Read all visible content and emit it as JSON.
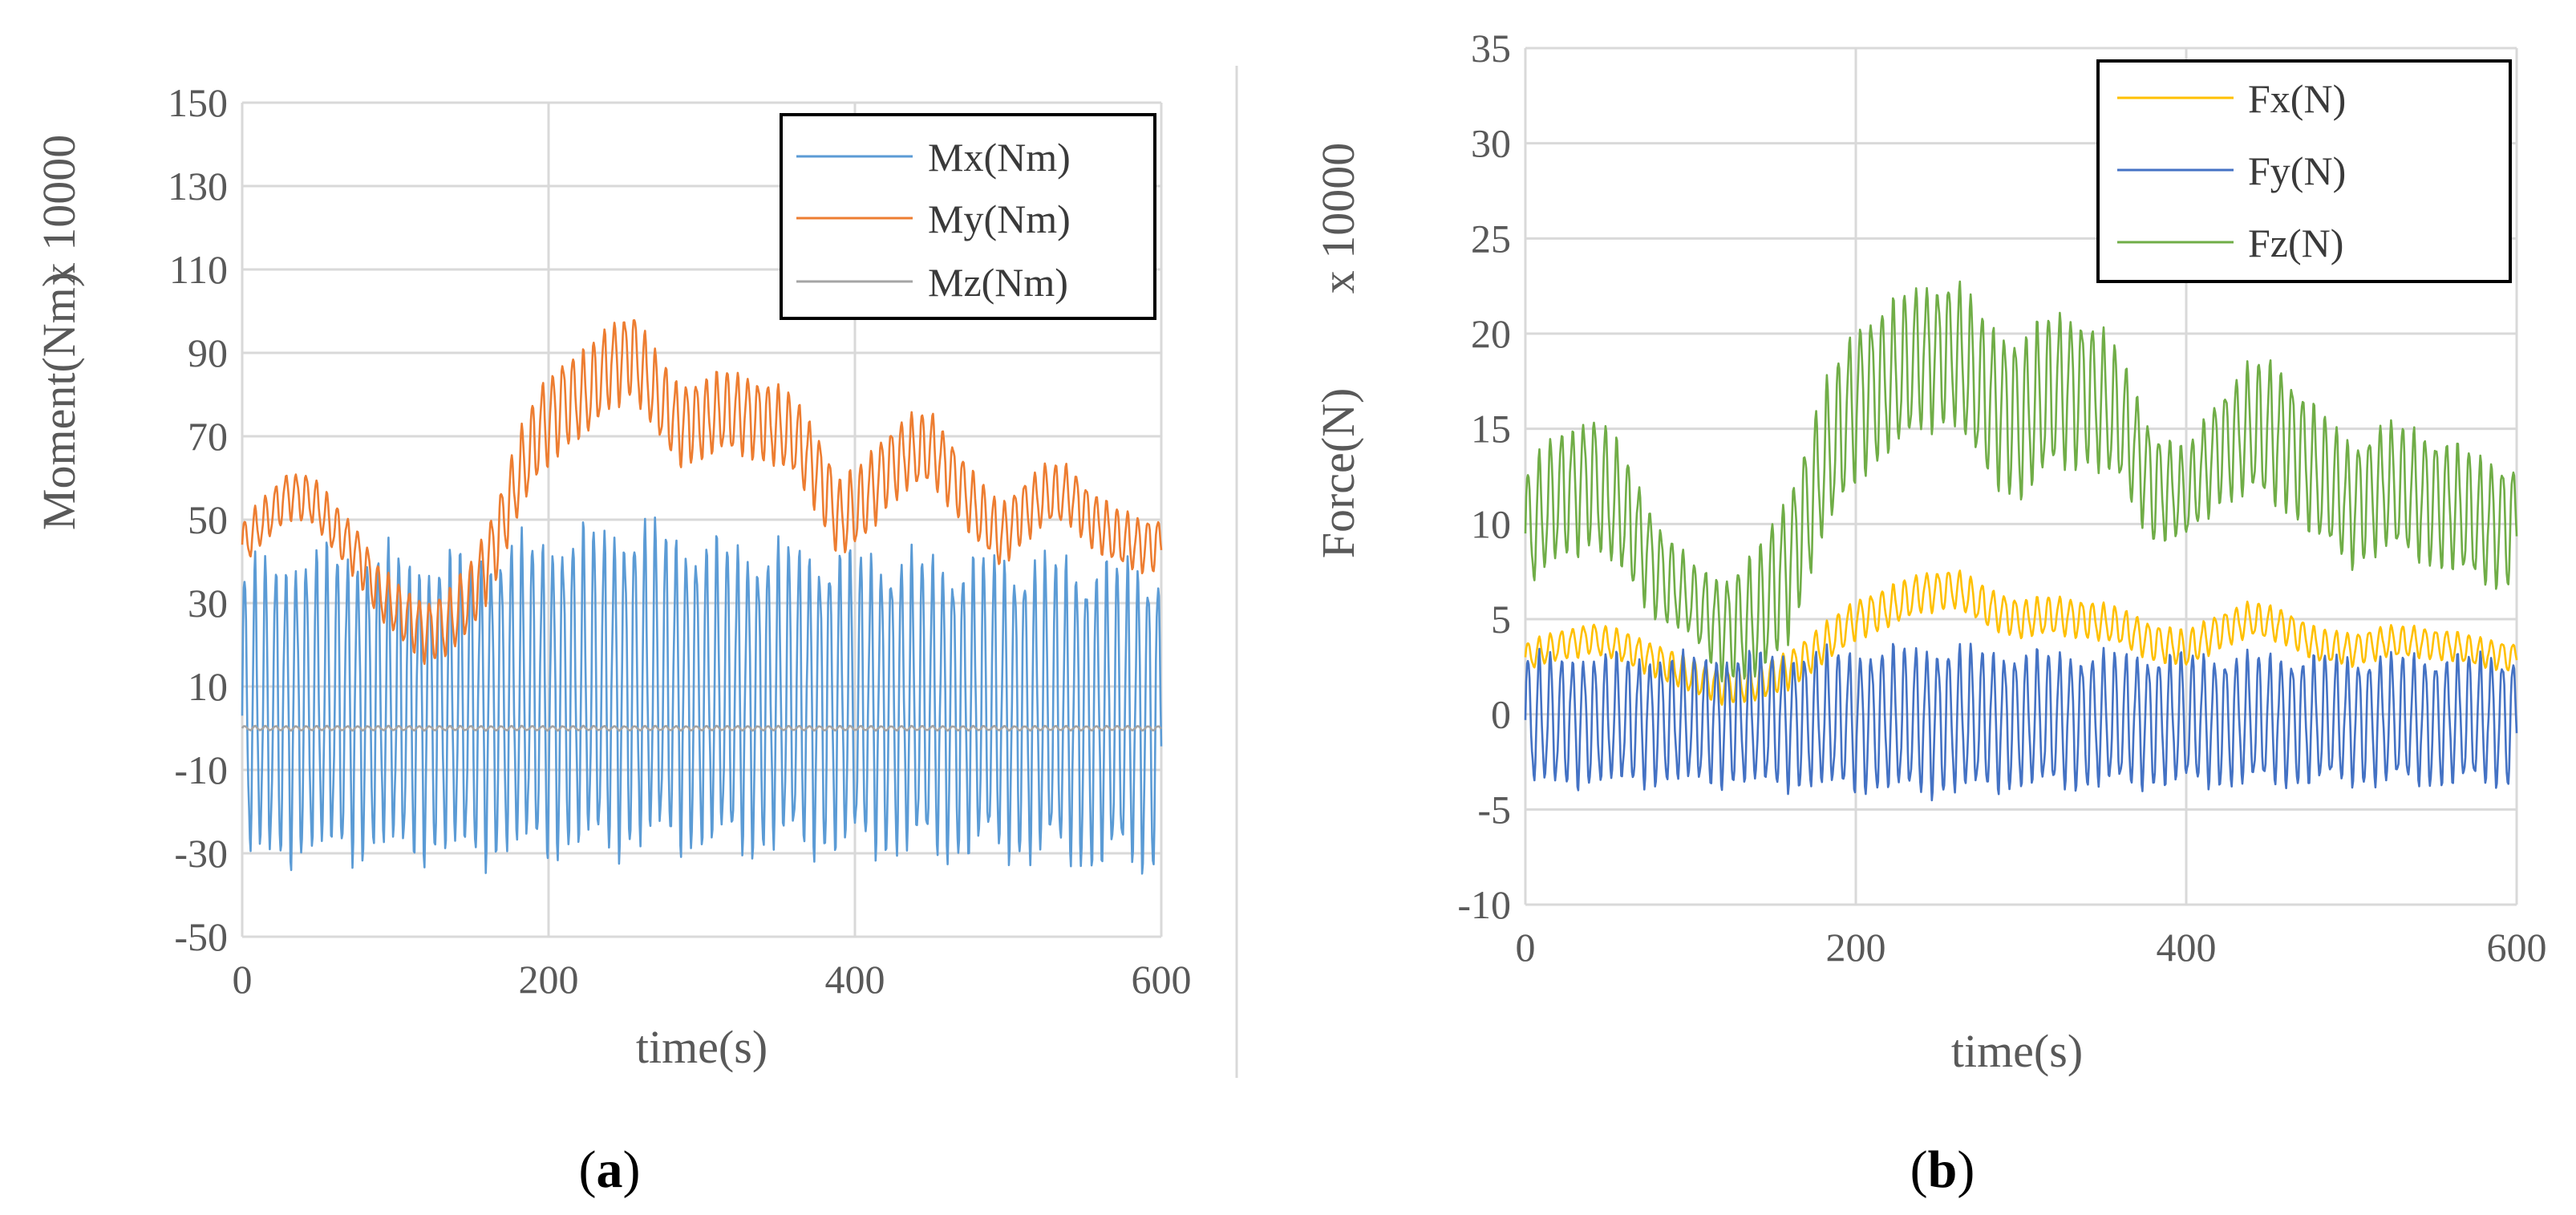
{
  "colors": {
    "mx": "#5B9BD5",
    "my": "#ED7D31",
    "mz": "#A5A5A5",
    "fx": "#FFC000",
    "fy": "#4472C4",
    "fz": "#70AD47",
    "grid": "#D9D9D9",
    "axis_text": "#595959"
  },
  "chart_data": [
    {
      "type": "line",
      "panel": "a",
      "panel_label": "(a)",
      "panel_label_open": "(",
      "panel_label_letter": "a",
      "panel_label_close": ")",
      "xlabel": "time(s)",
      "ylabel": "Moment(Nm)",
      "yscale_label": "x 10000",
      "xlim": [
        0,
        600
      ],
      "ylim": [
        -50,
        150
      ],
      "xticks": [
        0,
        200,
        400,
        600
      ],
      "yticks": [
        -50,
        -30,
        -10,
        10,
        30,
        50,
        70,
        90,
        110,
        130,
        150
      ],
      "grid": true,
      "legend_position": "top-right",
      "legend": [
        "Mx(Nm)",
        "My(Nm)",
        "Mz(Nm)"
      ],
      "series": [
        {
          "name": "Mx(Nm)",
          "color_key": "mx",
          "oscillation": {
            "period": 6.7,
            "amplitude_anchors_t": [
              0,
              60,
              120,
              200,
              250,
              300,
              400,
              500,
              600
            ],
            "amplitude_anchors_v": [
              33,
              34,
              33,
              35,
              36,
              34,
              33,
              33,
              34
            ]
          },
          "x": [
            0,
            30,
            60,
            90,
            120,
            150,
            180,
            200,
            230,
            250,
            270,
            300,
            330,
            360,
            390,
            420,
            450,
            480,
            510,
            540,
            570,
            600
          ],
          "values": [
            3,
            5,
            6,
            6,
            5,
            5,
            7,
            8,
            9,
            10,
            10,
            8,
            7,
            7,
            6,
            6,
            5,
            5,
            5,
            4,
            3,
            3
          ]
        },
        {
          "name": "My(Nm)",
          "color_key": "my",
          "oscillation": {
            "period": 6.7,
            "amplitude_anchors_t": [
              0,
              100,
              200,
              300,
              400,
              500,
              600
            ],
            "amplitude_anchors_v": [
              5,
              6,
              10,
              9,
              9,
              7,
              6
            ]
          },
          "x": [
            0,
            15,
            30,
            45,
            60,
            75,
            90,
            105,
            120,
            135,
            150,
            165,
            180,
            195,
            210,
            225,
            240,
            255,
            270,
            285,
            300,
            315,
            330,
            345,
            360,
            375,
            390,
            405,
            420,
            435,
            450,
            465,
            480,
            495,
            510,
            525,
            540,
            555,
            570,
            585,
            600
          ],
          "values": [
            44,
            50,
            56,
            55,
            48,
            42,
            32,
            27,
            23,
            25,
            32,
            44,
            60,
            72,
            78,
            80,
            87,
            90,
            80,
            73,
            74,
            76,
            75,
            73,
            70,
            62,
            50,
            54,
            62,
            66,
            67,
            60,
            52,
            46,
            52,
            56,
            56,
            50,
            46,
            44,
            44
          ]
        },
        {
          "name": "Mz(Nm)",
          "color_key": "mz",
          "oscillation": {
            "period": 6.7,
            "amplitude_anchors_t": [
              0,
              600
            ],
            "amplitude_anchors_v": [
              0.5,
              0.5
            ]
          },
          "x": [
            0,
            600
          ],
          "values": [
            0,
            0
          ]
        }
      ]
    },
    {
      "type": "line",
      "panel": "b",
      "panel_label": "(b)",
      "panel_label_open": "(",
      "panel_label_letter": "b",
      "panel_label_close": ")",
      "xlabel": "time(s)",
      "ylabel": "Force(N)",
      "yscale_label": "x 10000",
      "xlim": [
        0,
        600
      ],
      "ylim": [
        -10,
        35
      ],
      "xticks": [
        0,
        200,
        400,
        600
      ],
      "yticks": [
        -10,
        -5,
        0,
        5,
        10,
        15,
        20,
        25,
        30,
        35
      ],
      "grid": true,
      "legend_position": "top-right",
      "legend": [
        "Fx(N)",
        "Fy(N)",
        "Fz(N)"
      ],
      "series": [
        {
          "name": "Fx(N)",
          "color_key": "fx",
          "oscillation": {
            "period": 6.7,
            "amplitude_anchors_t": [
              0,
              200,
              400,
              600
            ],
            "amplitude_anchors_v": [
              0.7,
              1.0,
              0.9,
              0.7
            ]
          },
          "x": [
            0,
            20,
            40,
            60,
            80,
            100,
            120,
            140,
            160,
            180,
            200,
            220,
            240,
            260,
            280,
            300,
            320,
            340,
            360,
            380,
            400,
            420,
            440,
            460,
            480,
            500,
            520,
            540,
            560,
            580,
            600
          ],
          "values": [
            3.0,
            3.6,
            4.0,
            3.5,
            2.8,
            2.0,
            1.5,
            1.6,
            2.4,
            3.6,
            5.0,
            5.6,
            6.4,
            6.6,
            5.6,
            5.0,
            5.2,
            5.0,
            4.6,
            3.8,
            3.4,
            4.4,
            5.0,
            4.6,
            3.6,
            3.4,
            3.8,
            3.8,
            3.6,
            3.2,
            3.0
          ]
        },
        {
          "name": "Fy(N)",
          "color_key": "fy",
          "oscillation": {
            "period": 6.7,
            "amplitude_anchors_t": [
              0,
              100,
              200,
              250,
              300,
              400,
              500,
              600
            ],
            "amplitude_anchors_v": [
              3.2,
              3.1,
              3.4,
              3.6,
              3.3,
              3.2,
              3.1,
              3.2
            ]
          },
          "x": [
            0,
            600
          ],
          "values": [
            -0.3,
            -0.3
          ]
        },
        {
          "name": "Fz(N)",
          "color_key": "fz",
          "oscillation": {
            "period": 6.7,
            "amplitude_anchors_t": [
              0,
              50,
              100,
              150,
              200,
              250,
              300,
              350,
              400,
              450,
              500,
              550,
              600
            ],
            "amplitude_anchors_v": [
              3.0,
              3.3,
              1.8,
              3.5,
              3.8,
              3.5,
              4.0,
              3.5,
              2.2,
              3.5,
              3.0,
              3.2,
              3.0
            ]
          },
          "x": [
            0,
            20,
            40,
            60,
            80,
            100,
            120,
            140,
            160,
            180,
            200,
            220,
            240,
            260,
            280,
            300,
            320,
            340,
            360,
            380,
            400,
            420,
            440,
            460,
            480,
            500,
            520,
            540,
            560,
            580,
            600
          ],
          "values": [
            9.5,
            11.5,
            12.3,
            10.5,
            7.5,
            6.0,
            4.5,
            5.0,
            8.0,
            13.0,
            16.5,
            17.5,
            18.8,
            19.0,
            16.5,
            15.5,
            17.0,
            17.0,
            15.5,
            12.0,
            11.5,
            14.0,
            15.0,
            14.5,
            12.5,
            11.0,
            12.0,
            11.5,
            11.0,
            10.0,
            10.0
          ]
        }
      ]
    }
  ]
}
